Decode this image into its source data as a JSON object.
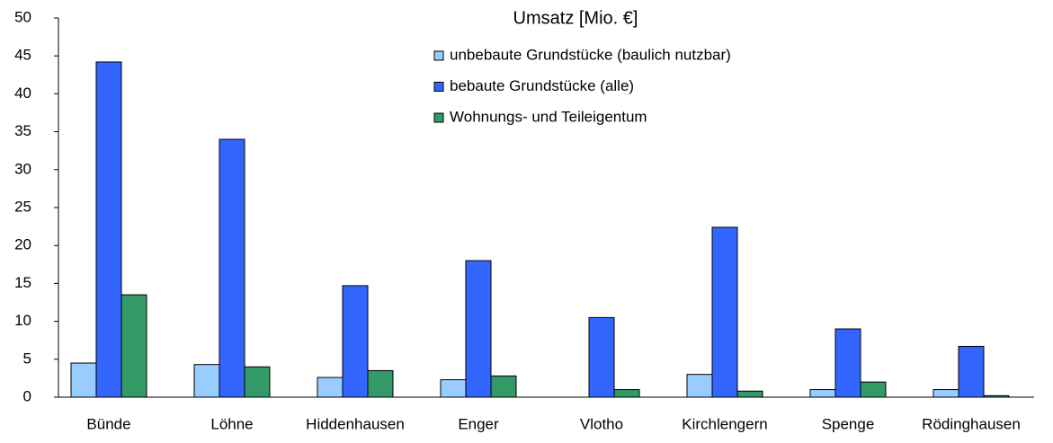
{
  "chart_data": {
    "type": "bar",
    "title": "Umsatz [Mio. €]",
    "categories": [
      "Bünde",
      "Löhne",
      "Hiddenhausen",
      "Enger",
      "Vlotho",
      "Kirchlengern",
      "Spenge",
      "Rödinghausen"
    ],
    "series": [
      {
        "name": "unbebaute Grundstücke (baulich nutzbar)",
        "color": "#99ccff",
        "values": [
          4.5,
          4.3,
          2.6,
          2.3,
          0,
          3.0,
          1.0,
          1.0
        ]
      },
      {
        "name": "bebaute Grundstücke (alle)",
        "color": "#3366ff",
        "values": [
          44.2,
          34.0,
          14.7,
          18.0,
          10.5,
          22.4,
          9.0,
          6.7
        ]
      },
      {
        "name": "Wohnungs- und Teileigentum",
        "color": "#339966",
        "values": [
          13.5,
          4.0,
          3.5,
          2.8,
          1.0,
          0.8,
          2.0,
          0.2
        ]
      }
    ],
    "ylim": [
      0,
      50
    ],
    "yticks": [
      0,
      5,
      10,
      15,
      20,
      25,
      30,
      35,
      40,
      45,
      50
    ],
    "grid": false
  }
}
